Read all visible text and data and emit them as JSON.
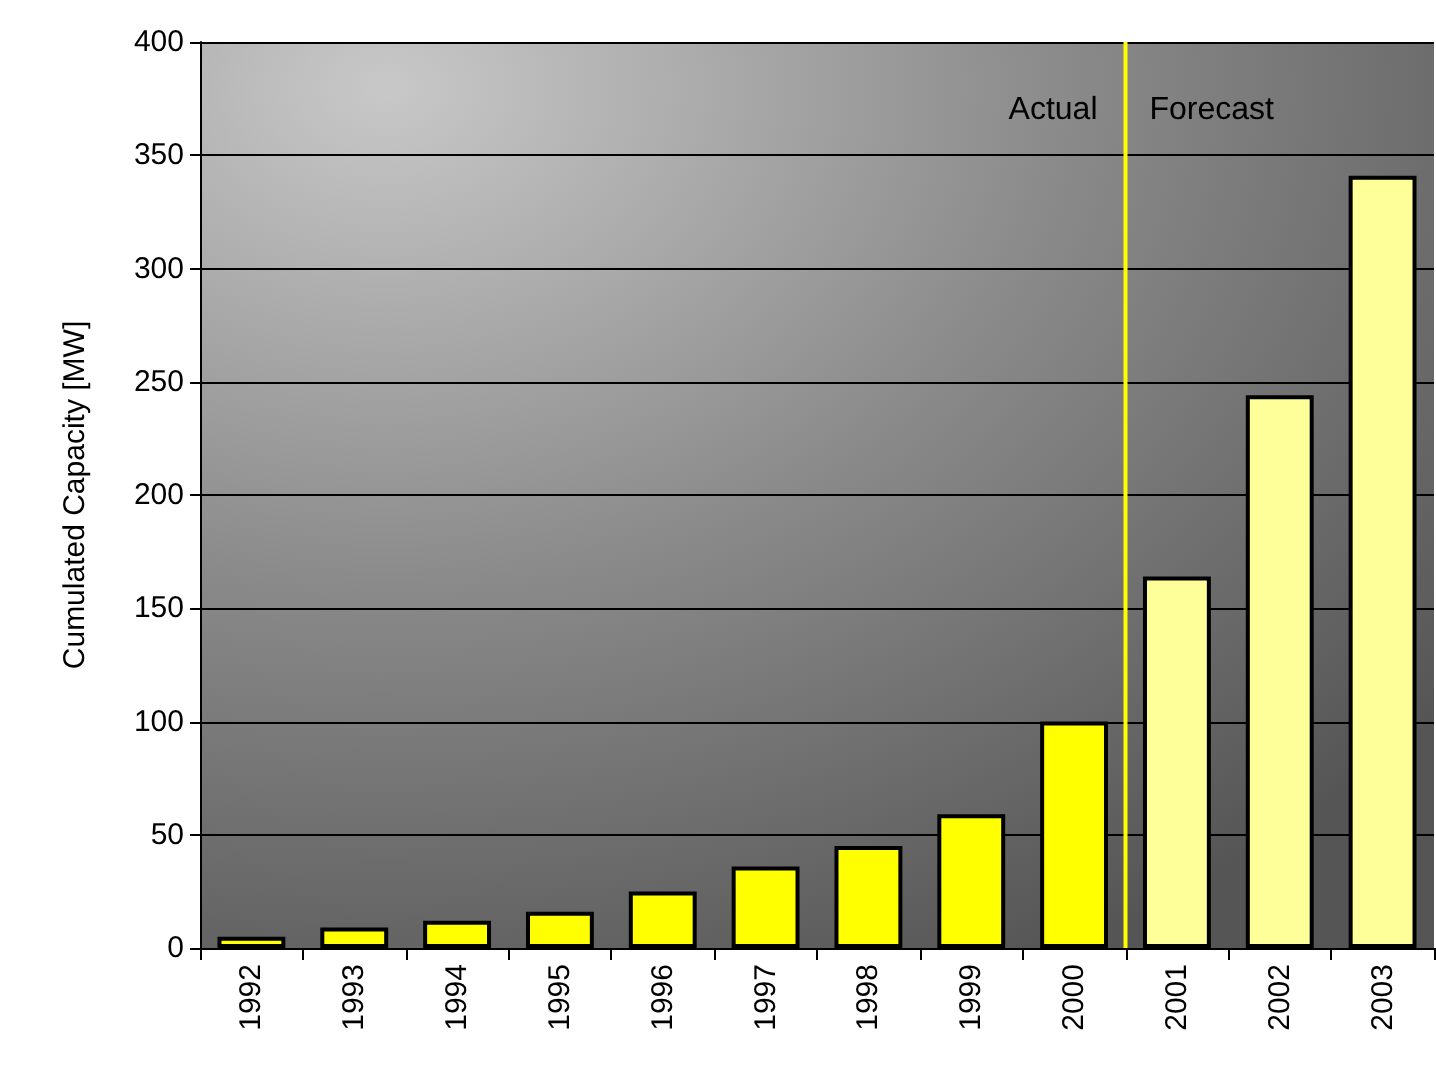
{
  "chart_data": {
    "type": "bar",
    "ylabel": "Cumulated Capacity [MW]",
    "categories": [
      "1992",
      "1993",
      "1994",
      "1995",
      "1996",
      "1997",
      "1998",
      "1999",
      "2000",
      "2001",
      "2002",
      "2003"
    ],
    "values": [
      5,
      9,
      12,
      16,
      25,
      36,
      45,
      59,
      100,
      164,
      244,
      341
    ],
    "colors": [
      "#ffff00",
      "#ffff00",
      "#ffff00",
      "#ffff00",
      "#ffff00",
      "#ffff00",
      "#ffff00",
      "#ffff00",
      "#ffff00",
      "#ffff99",
      "#ffff99",
      "#ffff99"
    ],
    "ylim": [
      0,
      400
    ],
    "yticks": [
      0,
      50,
      100,
      150,
      200,
      250,
      300,
      350,
      400
    ],
    "grid": "y",
    "ref_lines": [
      {
        "axis": "x",
        "value": "2000",
        "color": "#ffff00"
      }
    ],
    "annotations": [
      "Actual",
      "Forecast"
    ]
  }
}
